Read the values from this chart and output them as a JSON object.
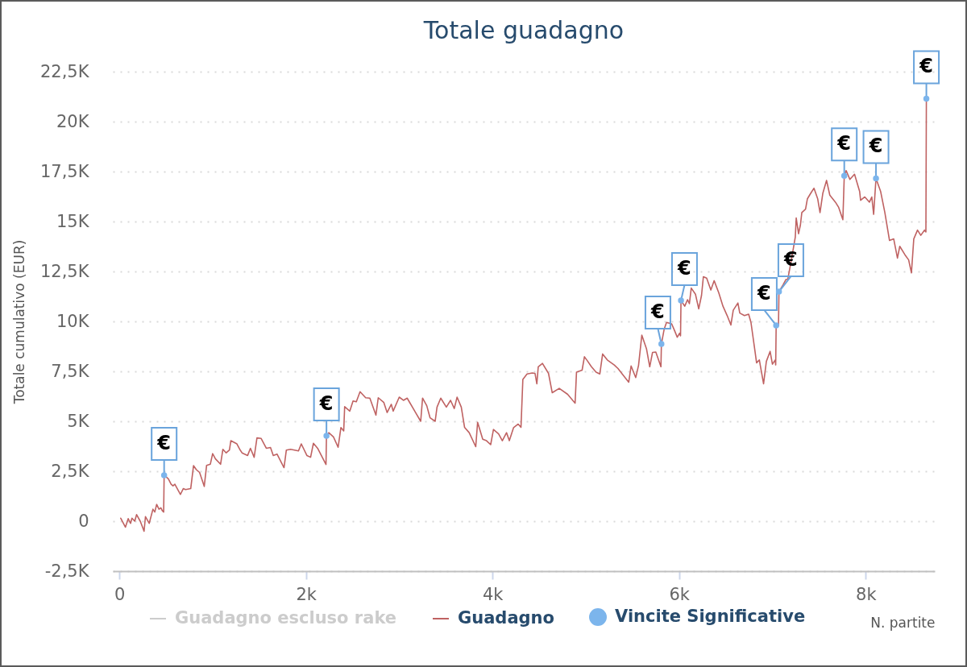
{
  "chart_data": {
    "type": "line",
    "title": "Totale guadagno",
    "xlabel": "N. partite",
    "ylabel": "Totale cumulativo (EUR)",
    "xlim": [
      -70,
      8740
    ],
    "xticks": [
      0,
      {
        "value": 2000,
        "label": "2k"
      },
      {
        "value": 4000,
        "label": "4k"
      },
      {
        "value": 6000,
        "label": "6k"
      },
      {
        "value": 8000,
        "label": "8k"
      }
    ],
    "ylim": [
      -2500,
      22500
    ],
    "yticks": [
      {
        "value": -2500,
        "label": "-2,5K"
      },
      0,
      {
        "value": 2500,
        "label": "2,5K"
      },
      {
        "value": 5000,
        "label": "5K"
      },
      {
        "value": 7500,
        "label": "7,5K"
      },
      {
        "value": 10000,
        "label": "10K"
      },
      {
        "value": 12500,
        "label": "12,5K"
      },
      {
        "value": 15000,
        "label": "15K"
      },
      {
        "value": 17500,
        "label": "17,5K"
      },
      {
        "value": 20000,
        "label": "20K"
      },
      {
        "value": 22500,
        "label": "22,5K"
      }
    ],
    "grid": "y",
    "legend": "bottom",
    "series": [
      {
        "name": "Guadagno escluso rake",
        "color": "#cccccc"
      },
      {
        "name": "Guadagno",
        "color": "#bf6262",
        "x": [
          15,
          65,
          95,
          120,
          135,
          165,
          185,
          225,
          265,
          280,
          320,
          360,
          380,
          400,
          425,
          445,
          460,
          475,
          480,
          525,
          555,
          575,
          595,
          655,
          685,
          710,
          765,
          795,
          825,
          860,
          910,
          935,
          975,
          1000,
          1030,
          1085,
          1110,
          1145,
          1180,
          1195,
          1260,
          1290,
          1315,
          1375,
          1405,
          1445,
          1475,
          1520,
          1575,
          1620,
          1650,
          1690,
          1765,
          1790,
          1835,
          1920,
          1950,
          2010,
          2050,
          2080,
          2125,
          2165,
          2215,
          2220,
          2245,
          2295,
          2345,
          2375,
          2405,
          2415,
          2470,
          2505,
          2540,
          2580,
          2640,
          2685,
          2750,
          2775,
          2835,
          2870,
          2915,
          2935,
          3000,
          3045,
          3085,
          3175,
          3230,
          3250,
          3295,
          3330,
          3385,
          3405,
          3445,
          3505,
          3550,
          3590,
          3620,
          3665,
          3700,
          3750,
          3820,
          3840,
          3895,
          3935,
          3980,
          4010,
          4065,
          4105,
          4150,
          4180,
          4225,
          4275,
          4305,
          4325,
          4370,
          4425,
          4455,
          4475,
          4490,
          4535,
          4600,
          4640,
          4715,
          4805,
          4885,
          4900,
          4960,
          4985,
          5015,
          5060,
          5110,
          5150,
          5180,
          5230,
          5305,
          5345,
          5390,
          5460,
          5485,
          5535,
          5565,
          5600,
          5650,
          5685,
          5715,
          5750,
          5805,
          5810,
          5840,
          5865,
          5920,
          5950,
          5980,
          6005,
          6015,
          6020,
          6060,
          6090,
          6110,
          6130,
          6175,
          6210,
          6240,
          6260,
          6295,
          6340,
          6375,
          6425,
          6470,
          6515,
          6555,
          6580,
          6630,
          6650,
          6700,
          6745,
          6770,
          6810,
          6830,
          6860,
          6870,
          6905,
          6935,
          6975,
          7000,
          7030,
          7035,
          7040,
          7065,
          7070,
          7115,
          7145,
          7165,
          7200,
          7245,
          7255,
          7280,
          7300,
          7315,
          7355,
          7375,
          7410,
          7445,
          7485,
          7510,
          7540,
          7580,
          7615,
          7675,
          7710,
          7755,
          7770,
          7790,
          7830,
          7880,
          7935,
          7945,
          7990,
          8040,
          8065,
          8085,
          8110,
          8160,
          8205,
          8255,
          8300,
          8340,
          8365,
          8420,
          8460,
          8490,
          8515,
          8555,
          8590,
          8630,
          8645,
          8650
        ],
        "values": [
          150,
          -300,
          130,
          -110,
          150,
          0,
          330,
          -10,
          -500,
          230,
          -110,
          600,
          460,
          840,
          600,
          670,
          530,
          460,
          2300,
          2120,
          1850,
          1770,
          1850,
          1340,
          1630,
          1580,
          1630,
          2780,
          2580,
          2440,
          1740,
          2790,
          2850,
          3380,
          3120,
          2850,
          3600,
          3420,
          3560,
          4030,
          3870,
          3600,
          3420,
          3290,
          3650,
          3200,
          4170,
          4140,
          3650,
          3690,
          3290,
          3360,
          2680,
          3560,
          3600,
          3520,
          3870,
          3290,
          3200,
          3900,
          3650,
          3290,
          2840,
          4270,
          4430,
          4220,
          3700,
          4690,
          4520,
          5730,
          5510,
          6020,
          5980,
          6480,
          6180,
          6160,
          5310,
          6180,
          5940,
          5440,
          5850,
          5510,
          6210,
          6050,
          6160,
          5440,
          5000,
          6160,
          5780,
          5180,
          5000,
          5710,
          6160,
          5710,
          6050,
          5640,
          6210,
          5710,
          4700,
          4430,
          3730,
          4950,
          4100,
          4030,
          3830,
          4590,
          4370,
          4030,
          4430,
          4030,
          4680,
          4860,
          4700,
          7100,
          7370,
          7420,
          7400,
          6880,
          7730,
          7900,
          7400,
          6430,
          6650,
          6350,
          5910,
          7460,
          7560,
          8230,
          8040,
          7730,
          7460,
          7370,
          8370,
          8070,
          7820,
          7640,
          7370,
          6960,
          7770,
          7190,
          7800,
          9310,
          8630,
          7730,
          8450,
          8470,
          7730,
          8870,
          9620,
          9950,
          9880,
          9550,
          9210,
          9410,
          9280,
          11050,
          10760,
          11090,
          10890,
          11670,
          11360,
          10630,
          11300,
          12240,
          12170,
          11570,
          12040,
          11430,
          10760,
          10290,
          9820,
          10560,
          10920,
          10420,
          10290,
          10360,
          9950,
          8610,
          7930,
          8070,
          7800,
          6880,
          8000,
          8500,
          7860,
          8070,
          7820,
          9800,
          9790,
          11490,
          11840,
          12100,
          12120,
          13000,
          14220,
          15180,
          14390,
          14830,
          15450,
          15620,
          16140,
          16410,
          16670,
          16140,
          15450,
          16410,
          17060,
          16320,
          15970,
          15710,
          15090,
          17290,
          17550,
          17110,
          17370,
          16500,
          16060,
          16230,
          15970,
          16230,
          15360,
          17160,
          16500,
          15450,
          14050,
          14130,
          13170,
          13760,
          13340,
          13080,
          12430,
          14130,
          14570,
          14310,
          14570,
          14480,
          21150
        ]
      },
      {
        "name": "Vincite Significative",
        "type": "scatter",
        "marker": "circle",
        "color": "#7cb5ec",
        "x": [
          480,
          2220,
          5810,
          6020,
          7040,
          7070,
          7770,
          8110,
          8650
        ],
        "values": [
          2300,
          4270,
          8870,
          11050,
          9800,
          11490,
          17290,
          17160,
          21150
        ]
      }
    ],
    "annotations": [
      {
        "text": "€",
        "x": 480,
        "y": 2300
      },
      {
        "text": "€",
        "x": 2220,
        "y": 4270
      },
      {
        "text": "€",
        "x": 5810,
        "y": 8870
      },
      {
        "text": "€",
        "x": 6020,
        "y": 11050
      },
      {
        "text": "€",
        "x": 7040,
        "y": 9800
      },
      {
        "text": "€",
        "x": 7070,
        "y": 11490
      },
      {
        "text": "€",
        "x": 7770,
        "y": 17290
      },
      {
        "text": "€",
        "x": 8110,
        "y": 17160
      },
      {
        "text": "€",
        "x": 8650,
        "y": 21150
      }
    ]
  }
}
